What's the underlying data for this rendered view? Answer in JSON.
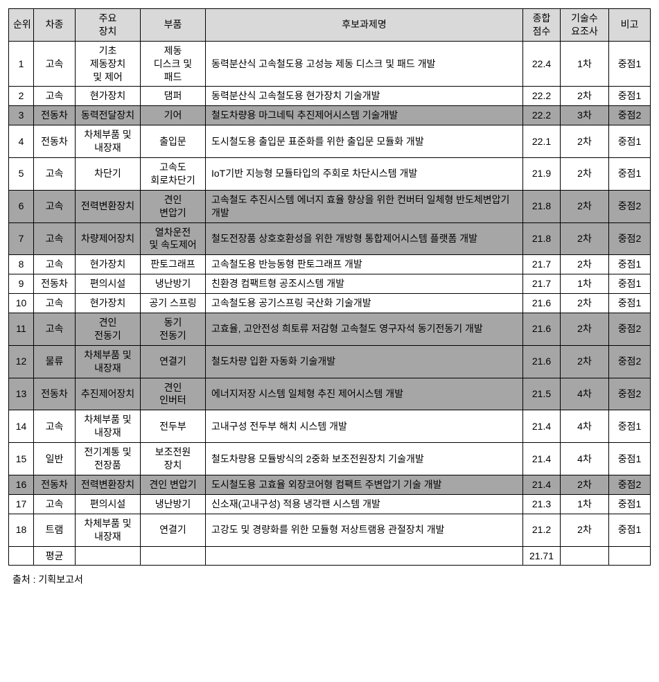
{
  "header_bg": "#d9d9d9",
  "shaded_bg": "#a6a6a6",
  "white_bg": "#ffffff",
  "footnote": "출처 : 기획보고서",
  "average_label": "평균",
  "average_value": "21.71",
  "columns": [
    "순위",
    "차종",
    "주요\n장치",
    "부품",
    "후보과제명",
    "종합\n점수",
    "기술수\n요조사",
    "비고"
  ],
  "rows": [
    {
      "rank": "1",
      "type": "고속",
      "device": "기초\n제동장치\n및 제어",
      "part": "제동\n디스크 및\n패드",
      "project": "동력분산식 고속철도용 고성능 제동 디스크 및 패드 개발",
      "score": "22.4",
      "survey": "1차",
      "note": "중점1",
      "shaded": false
    },
    {
      "rank": "2",
      "type": "고속",
      "device": "현가장치",
      "part": "댐퍼",
      "project": "동력분산식 고속철도용 현가장치 기술개발",
      "score": "22.2",
      "survey": "2차",
      "note": "중점1",
      "shaded": false
    },
    {
      "rank": "3",
      "type": "전동차",
      "device": "동력전달장치",
      "part": "기어",
      "project": "철도차량용 마그네틱 추진제어시스템 기술개발",
      "score": "22.2",
      "survey": "3차",
      "note": "중점2",
      "shaded": true
    },
    {
      "rank": "4",
      "type": "전동차",
      "device": "차체부품 및\n내장재",
      "part": "출입문",
      "project": "도시철도용 출입문 표준화를 위한 출입문 모듈화 개발",
      "score": "22.1",
      "survey": "2차",
      "note": "중점1",
      "shaded": false
    },
    {
      "rank": "5",
      "type": "고속",
      "device": "차단기",
      "part": "고속도 회로차단기",
      "project": "IoT기반 지능형 모듈타입의 주회로 차단시스템 개발",
      "score": "21.9",
      "survey": "2차",
      "note": "중점1",
      "shaded": false
    },
    {
      "rank": "6",
      "type": "고속",
      "device": "전력변환장치",
      "part": "견인\n변압기",
      "project": "고속철도 추진시스템 에너지 효율 향상을 위한 컨버터 일체형 반도체변압기 개발",
      "score": "21.8",
      "survey": "2차",
      "note": "중점2",
      "shaded": true
    },
    {
      "rank": "7",
      "type": "고속",
      "device": "차량제어장치",
      "part": "열차운전\n및 속도제어",
      "project": "철도전장품 상호호환성을 위한 개방형 통합제어시스템 플랫폼 개발",
      "score": "21.8",
      "survey": "2차",
      "note": "중점2",
      "shaded": true
    },
    {
      "rank": "8",
      "type": "고속",
      "device": "현가장치",
      "part": "판토그래프",
      "project": "고속철도용 반능동형 판토그래프 개발",
      "score": "21.7",
      "survey": "2차",
      "note": "중점1",
      "shaded": false
    },
    {
      "rank": "9",
      "type": "전동차",
      "device": "편의시설",
      "part": "냉난방기",
      "project": "친환경 컴팩트형 공조시스템 개발",
      "score": "21.7",
      "survey": "1차",
      "note": "중점1",
      "shaded": false
    },
    {
      "rank": "10",
      "type": "고속",
      "device": "현가장치",
      "part": "공기 스프링",
      "project": "고속철도용 공기스프링 국산화 기술개발",
      "score": "21.6",
      "survey": "2차",
      "note": "중점1",
      "shaded": false
    },
    {
      "rank": "11",
      "type": "고속",
      "device": "견인\n전동기",
      "part": "동기\n전동기",
      "project": "고효율, 고안전성 희토류 저감형 고속철도 영구자석 동기전동기 개발",
      "score": "21.6",
      "survey": "2차",
      "note": "중점2",
      "shaded": true
    },
    {
      "rank": "12",
      "type": "물류",
      "device": "차체부품 및\n내장재",
      "part": "연결기",
      "project": "철도차량 입환 자동화 기술개발",
      "score": "21.6",
      "survey": "2차",
      "note": "중점2",
      "shaded": true
    },
    {
      "rank": "13",
      "type": "전동차",
      "device": "추진제어장치",
      "part": "견인\n인버터",
      "project": "에너지저장 시스템 일체형 추진 제어시스템 개발",
      "score": "21.5",
      "survey": "4차",
      "note": "중점2",
      "shaded": true
    },
    {
      "rank": "14",
      "type": "고속",
      "device": "차체부품 및\n내장재",
      "part": "전두부",
      "project": "고내구성 전두부 해치 시스템 개발",
      "score": "21.4",
      "survey": "4차",
      "note": "중점1",
      "shaded": false
    },
    {
      "rank": "15",
      "type": "일반",
      "device": "전기계통 및\n전장품",
      "part": "보조전원\n장치",
      "project": "철도차량용 모듈방식의 2중화 보조전원장치 기술개발",
      "score": "21.4",
      "survey": "4차",
      "note": "중점1",
      "shaded": false
    },
    {
      "rank": "16",
      "type": "전동차",
      "device": "전력변환장치",
      "part": "견인 변압기",
      "project": "도시철도용 고효율 외장코어형 컴팩트 주변압기 기술 개발",
      "score": "21.4",
      "survey": "2차",
      "note": "중점2",
      "shaded": true
    },
    {
      "rank": "17",
      "type": "고속",
      "device": "편의시설",
      "part": "냉난방기",
      "project": "신소재(고내구성) 적용 냉각팬 시스템 개발",
      "score": "21.3",
      "survey": "1차",
      "note": "중점1",
      "shaded": false
    },
    {
      "rank": "18",
      "type": "트램",
      "device": "차체부품 및\n내장재",
      "part": "연결기",
      "project": "고강도 및 경량화를 위한 모듈형 저상트램용 관절장치 개발",
      "score": "21.2",
      "survey": "2차",
      "note": "중점1",
      "shaded": false
    }
  ]
}
